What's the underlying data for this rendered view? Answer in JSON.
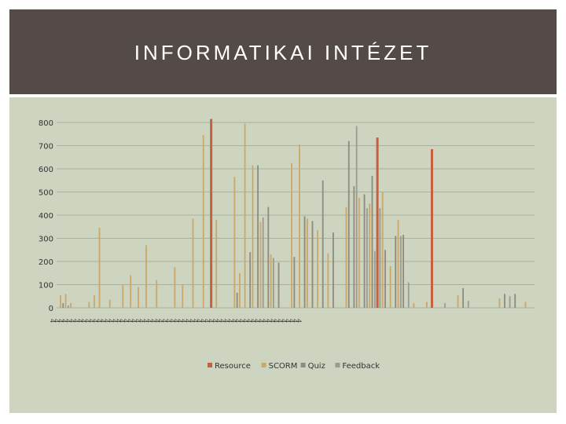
{
  "page_title": "INFORMATIKAI INTÉZET",
  "colors": {
    "header_bg": "#544b48",
    "panel_bg": "#cdd4bf",
    "resource": "#c65f3e",
    "scorm": "#c9a86a",
    "quiz": "#8f8a7e",
    "feedback": "#9d9b91"
  },
  "chart_data": {
    "type": "bar",
    "title": "",
    "xlabel": "",
    "ylabel": "",
    "ylim": [
      0,
      800
    ],
    "yticks": [
      "0",
      "100",
      "200",
      "300",
      "400",
      "500",
      "600",
      "700",
      "800"
    ],
    "grid": true,
    "legend_placement": "bottom",
    "x_tick_labels_note": "stacked rotated two-digit tick labels, largely illegible",
    "x_tick_labels": [
      "4",
      "4",
      "4",
      "4",
      "4",
      "4",
      "4",
      "4",
      "4",
      "4",
      "4",
      "4",
      "4",
      "4",
      "4",
      "4",
      "4",
      "4",
      "4",
      "4",
      "4",
      "4",
      "4",
      "4",
      "4",
      "4",
      "4",
      "4",
      "4",
      "4",
      "4",
      "4",
      "4",
      "4",
      "4",
      "4",
      "4",
      "4",
      "4",
      "4",
      "4",
      "4",
      "4",
      "4",
      "4",
      "4",
      "4",
      "4",
      "4",
      "4",
      "4",
      "4",
      "4",
      "4",
      "4",
      "4",
      "4",
      "4",
      "4",
      "4",
      "4",
      "4",
      "4",
      "4",
      "4"
    ],
    "series": [
      {
        "name": "Resource",
        "points": [
          {
            "i": 59,
            "v": 815
          },
          {
            "i": 123,
            "v": 735
          },
          {
            "i": 144,
            "v": 685
          }
        ]
      },
      {
        "name": "SCORM",
        "points": [
          {
            "i": 1,
            "v": 55
          },
          {
            "i": 3,
            "v": 60
          },
          {
            "i": 5,
            "v": 20
          },
          {
            "i": 12,
            "v": 25
          },
          {
            "i": 14,
            "v": 55
          },
          {
            "i": 16,
            "v": 345
          },
          {
            "i": 20,
            "v": 35
          },
          {
            "i": 25,
            "v": 100
          },
          {
            "i": 28,
            "v": 140
          },
          {
            "i": 31,
            "v": 90
          },
          {
            "i": 34,
            "v": 270
          },
          {
            "i": 38,
            "v": 120
          },
          {
            "i": 45,
            "v": 175
          },
          {
            "i": 48,
            "v": 100
          },
          {
            "i": 52,
            "v": 385
          },
          {
            "i": 56,
            "v": 745
          },
          {
            "i": 61,
            "v": 380
          },
          {
            "i": 68,
            "v": 565
          },
          {
            "i": 70,
            "v": 150
          },
          {
            "i": 72,
            "v": 795
          },
          {
            "i": 75,
            "v": 615
          },
          {
            "i": 78,
            "v": 370
          },
          {
            "i": 82,
            "v": 230
          },
          {
            "i": 90,
            "v": 625
          },
          {
            "i": 93,
            "v": 705
          },
          {
            "i": 96,
            "v": 385
          },
          {
            "i": 100,
            "v": 335
          },
          {
            "i": 104,
            "v": 235
          },
          {
            "i": 111,
            "v": 435
          },
          {
            "i": 116,
            "v": 475
          },
          {
            "i": 120,
            "v": 450
          },
          {
            "i": 125,
            "v": 500
          },
          {
            "i": 128,
            "v": 180
          },
          {
            "i": 131,
            "v": 380
          },
          {
            "i": 137,
            "v": 20
          },
          {
            "i": 142,
            "v": 25
          },
          {
            "i": 154,
            "v": 55
          },
          {
            "i": 170,
            "v": 40
          },
          {
            "i": 180,
            "v": 25
          }
        ]
      },
      {
        "name": "Quiz",
        "points": [
          {
            "i": 2,
            "v": 20
          },
          {
            "i": 69,
            "v": 65
          },
          {
            "i": 74,
            "v": 240
          },
          {
            "i": 77,
            "v": 615
          },
          {
            "i": 81,
            "v": 435
          },
          {
            "i": 85,
            "v": 195
          },
          {
            "i": 91,
            "v": 220
          },
          {
            "i": 95,
            "v": 395
          },
          {
            "i": 98,
            "v": 375
          },
          {
            "i": 102,
            "v": 550
          },
          {
            "i": 106,
            "v": 325
          },
          {
            "i": 112,
            "v": 720
          },
          {
            "i": 114,
            "v": 525
          },
          {
            "i": 118,
            "v": 490
          },
          {
            "i": 121,
            "v": 570
          },
          {
            "i": 126,
            "v": 250
          },
          {
            "i": 130,
            "v": 310
          },
          {
            "i": 133,
            "v": 315
          },
          {
            "i": 156,
            "v": 85
          },
          {
            "i": 172,
            "v": 60
          },
          {
            "i": 176,
            "v": 60
          }
        ]
      },
      {
        "name": "Feedback",
        "points": [
          {
            "i": 4,
            "v": 10
          },
          {
            "i": 79,
            "v": 390
          },
          {
            "i": 83,
            "v": 215
          },
          {
            "i": 115,
            "v": 785
          },
          {
            "i": 119,
            "v": 430
          },
          {
            "i": 122,
            "v": 245
          },
          {
            "i": 124,
            "v": 430
          },
          {
            "i": 132,
            "v": 310
          },
          {
            "i": 135,
            "v": 110
          },
          {
            "i": 149,
            "v": 20
          },
          {
            "i": 158,
            "v": 30
          },
          {
            "i": 174,
            "v": 50
          }
        ]
      }
    ]
  },
  "legend": [
    "Resource",
    "SCORM",
    "Quiz",
    "Feedback"
  ]
}
